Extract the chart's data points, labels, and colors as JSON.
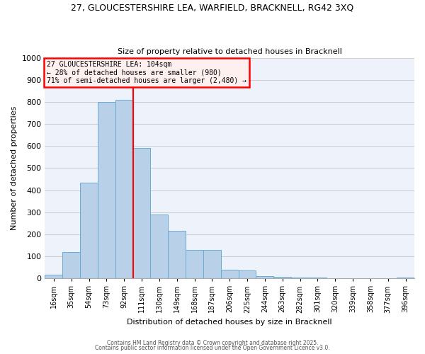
{
  "title_line1": "27, GLOUCESTERSHIRE LEA, WARFIELD, BRACKNELL, RG42 3XQ",
  "title_line2": "Size of property relative to detached houses in Bracknell",
  "xlabel": "Distribution of detached houses by size in Bracknell",
  "ylabel": "Number of detached properties",
  "categories": [
    "16sqm",
    "35sqm",
    "54sqm",
    "73sqm",
    "92sqm",
    "111sqm",
    "130sqm",
    "149sqm",
    "168sqm",
    "187sqm",
    "206sqm",
    "225sqm",
    "244sqm",
    "263sqm",
    "282sqm",
    "301sqm",
    "320sqm",
    "339sqm",
    "358sqm",
    "377sqm",
    "396sqm"
  ],
  "bar_values": [
    15,
    120,
    435,
    800,
    810,
    590,
    290,
    215,
    130,
    130,
    40,
    37,
    10,
    8,
    5,
    3,
    2,
    1,
    0,
    0,
    3
  ],
  "bar_color": "#b8d0e8",
  "bar_edge_color": "#6aaad4",
  "vline_color": "red",
  "vline_pos": 4.5,
  "ylim": [
    0,
    1000
  ],
  "yticks": [
    0,
    100,
    200,
    300,
    400,
    500,
    600,
    700,
    800,
    900,
    1000
  ],
  "grid_color": "#cccccc",
  "background_color": "#eef2fb",
  "annotation_title": "27 GLOUCESTERSHIRE LEA: 104sqm",
  "annotation_line2": "← 28% of detached houses are smaller (980)",
  "annotation_line3": "71% of semi-detached houses are larger (2,480) →",
  "annotation_box_facecolor": "#fff0f0",
  "annotation_edge_color": "red",
  "footer_line1": "Contains HM Land Registry data © Crown copyright and database right 2025.",
  "footer_line2": "Contains public sector information licensed under the Open Government Licence v3.0."
}
